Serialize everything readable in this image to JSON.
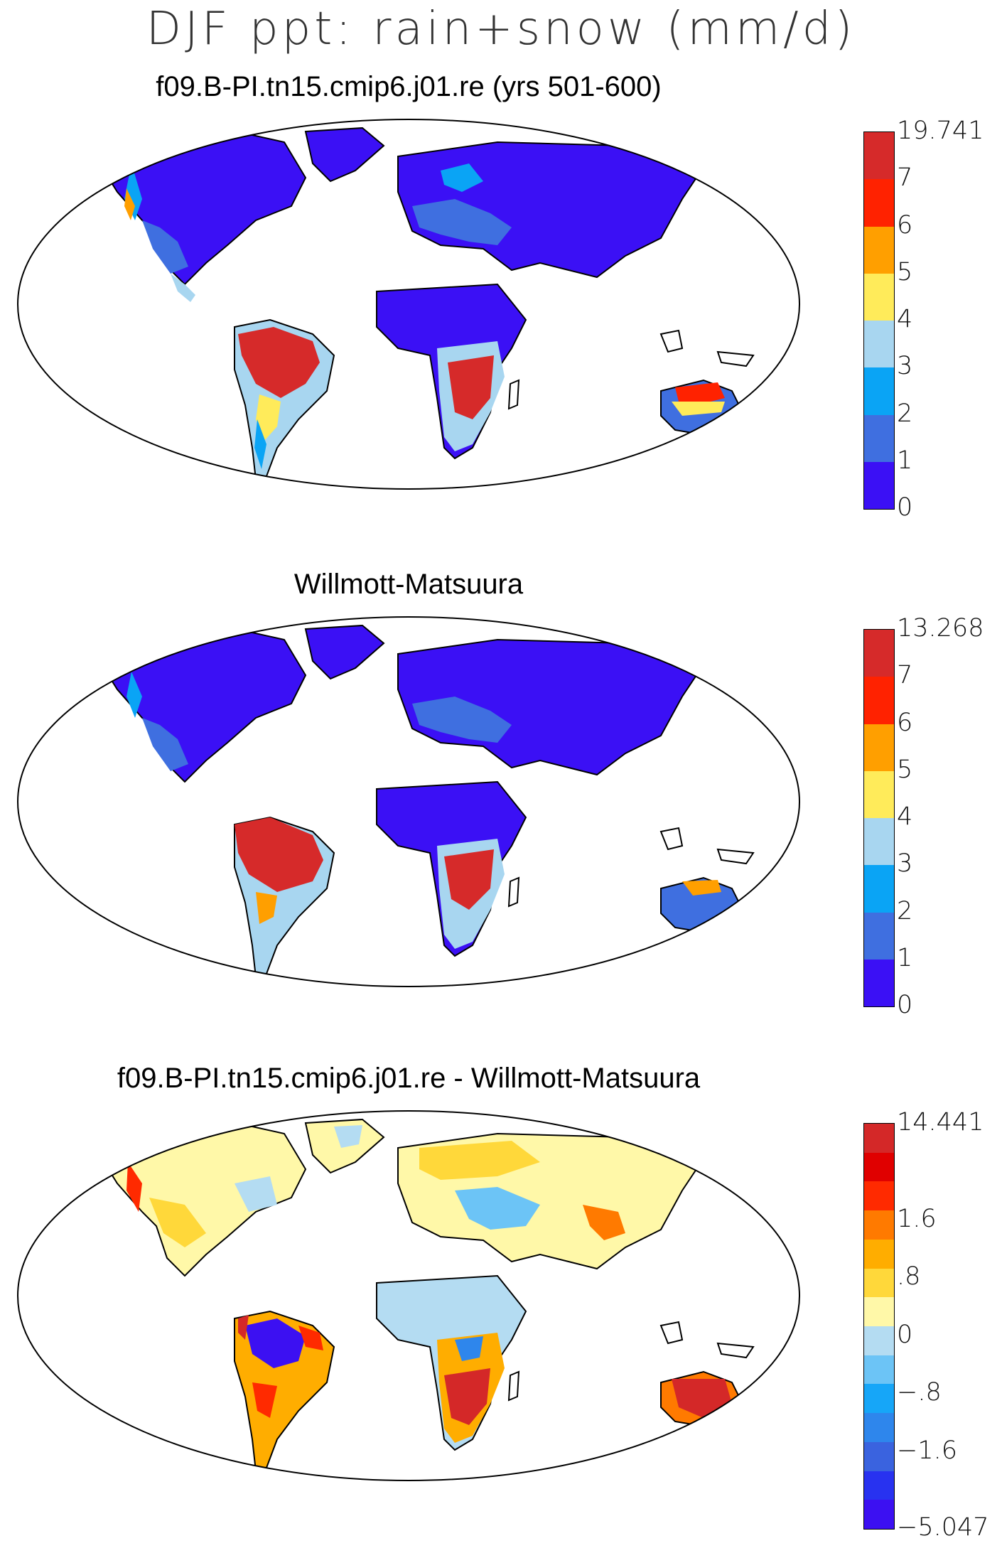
{
  "page": {
    "title": "DJF ppt: rain+snow (mm/d)"
  },
  "panels": [
    {
      "title": "f09.B-PI.tn15.cmip6.j01.re (yrs 501-600)",
      "colorbar": {
        "colors": [
          "#d62a2a",
          "#ff2200",
          "#ff9f00",
          "#ffeb5a",
          "#a8d6f0",
          "#0aa4f5",
          "#3f6fe0",
          "#3b10f5"
        ],
        "labels": [
          "19.741",
          "7",
          "6",
          "5",
          "4",
          "3",
          "2",
          "1",
          "0"
        ]
      }
    },
    {
      "title": "Willmott-Matsuura",
      "colorbar": {
        "colors": [
          "#d62a2a",
          "#ff2200",
          "#ff9f00",
          "#ffeb5a",
          "#a8d6f0",
          "#0aa4f5",
          "#3f6fe0",
          "#3b10f5"
        ],
        "labels": [
          "13.268",
          "7",
          "6",
          "5",
          "4",
          "3",
          "2",
          "1",
          "0"
        ]
      }
    },
    {
      "title": "f09.B-PI.tn15.cmip6.j01.re - Willmott-Matsuura",
      "colorbar": {
        "colors": [
          "#d42828",
          "#e00000",
          "#ff2a00",
          "#ff7a00",
          "#ffad00",
          "#ffd83a",
          "#fff8a8",
          "#b4dcf2",
          "#6cc4f6",
          "#16a6f8",
          "#2e86ec",
          "#3a63df",
          "#2832f0",
          "#3c10f2"
        ],
        "labels": [
          "14.441",
          "1.6",
          ".8",
          "0",
          "-.8",
          "-1.6",
          "-5.047"
        ]
      }
    }
  ]
}
